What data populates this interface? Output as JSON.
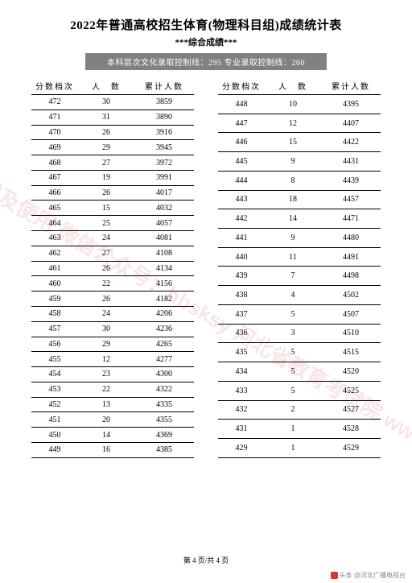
{
  "title": "2022年普通高校招生体育(物理科目组)成绩统计表",
  "subtitle": "***综合成绩***",
  "banner": "本科层次文化录取控制线：295 专业录取控制线：260",
  "headers": {
    "score": "分数档次",
    "count": "人　数",
    "cum": "累计人数"
  },
  "left": [
    {
      "s": "472",
      "c": "30",
      "m": "3859"
    },
    {
      "s": "471",
      "c": "31",
      "m": "3890"
    },
    {
      "s": "470",
      "c": "26",
      "m": "3916"
    },
    {
      "s": "469",
      "c": "29",
      "m": "3945"
    },
    {
      "s": "468",
      "c": "27",
      "m": "3972"
    },
    {
      "s": "467",
      "c": "19",
      "m": "3991"
    },
    {
      "s": "466",
      "c": "26",
      "m": "4017"
    },
    {
      "s": "465",
      "c": "15",
      "m": "4032"
    },
    {
      "s": "464",
      "c": "25",
      "m": "4057"
    },
    {
      "s": "463",
      "c": "24",
      "m": "4081"
    },
    {
      "s": "462",
      "c": "27",
      "m": "4108"
    },
    {
      "s": "461",
      "c": "26",
      "m": "4134"
    },
    {
      "s": "460",
      "c": "22",
      "m": "4156"
    },
    {
      "s": "459",
      "c": "26",
      "m": "4182"
    },
    {
      "s": "458",
      "c": "24",
      "m": "4206"
    },
    {
      "s": "457",
      "c": "30",
      "m": "4236"
    },
    {
      "s": "456",
      "c": "29",
      "m": "4265"
    },
    {
      "s": "455",
      "c": "12",
      "m": "4277"
    },
    {
      "s": "454",
      "c": "23",
      "m": "4300"
    },
    {
      "s": "453",
      "c": "22",
      "m": "4322"
    },
    {
      "s": "452",
      "c": "13",
      "m": "4335"
    },
    {
      "s": "451",
      "c": "20",
      "m": "4355"
    },
    {
      "s": "450",
      "c": "14",
      "m": "4369"
    },
    {
      "s": "449",
      "c": "16",
      "m": "4385"
    }
  ],
  "right": [
    {
      "s": "448",
      "c": "10",
      "m": "4395"
    },
    {
      "s": "447",
      "c": "12",
      "m": "4407"
    },
    {
      "s": "446",
      "c": "15",
      "m": "4422"
    },
    {
      "s": "445",
      "c": "9",
      "m": "4431"
    },
    {
      "s": "444",
      "c": "8",
      "m": "4439"
    },
    {
      "s": "443",
      "c": "18",
      "m": "4457"
    },
    {
      "s": "442",
      "c": "14",
      "m": "4471"
    },
    {
      "s": "441",
      "c": "9",
      "m": "4480"
    },
    {
      "s": "440",
      "c": "11",
      "m": "4491"
    },
    {
      "s": "439",
      "c": "7",
      "m": "4498"
    },
    {
      "s": "438",
      "c": "4",
      "m": "4502"
    },
    {
      "s": "437",
      "c": "5",
      "m": "4507"
    },
    {
      "s": "436",
      "c": "3",
      "m": "4510"
    },
    {
      "s": "435",
      "c": "5",
      "m": "4515"
    },
    {
      "s": "434",
      "c": "5",
      "m": "4520"
    },
    {
      "s": "433",
      "c": "5",
      "m": "4525"
    },
    {
      "s": "432",
      "c": "2",
      "m": "4527"
    },
    {
      "s": "431",
      "c": "1",
      "m": "4528"
    },
    {
      "s": "429",
      "c": "1",
      "m": "4529"
    }
  ],
  "footer": "第 4 页/共 4 页",
  "credit": "头条 @河北广播电视台",
  "watermark": "未经授权严禁转载及使用\n微信公众号：hbsksy\n河北省教育考试院\nwww.hebeea.edu.cn"
}
